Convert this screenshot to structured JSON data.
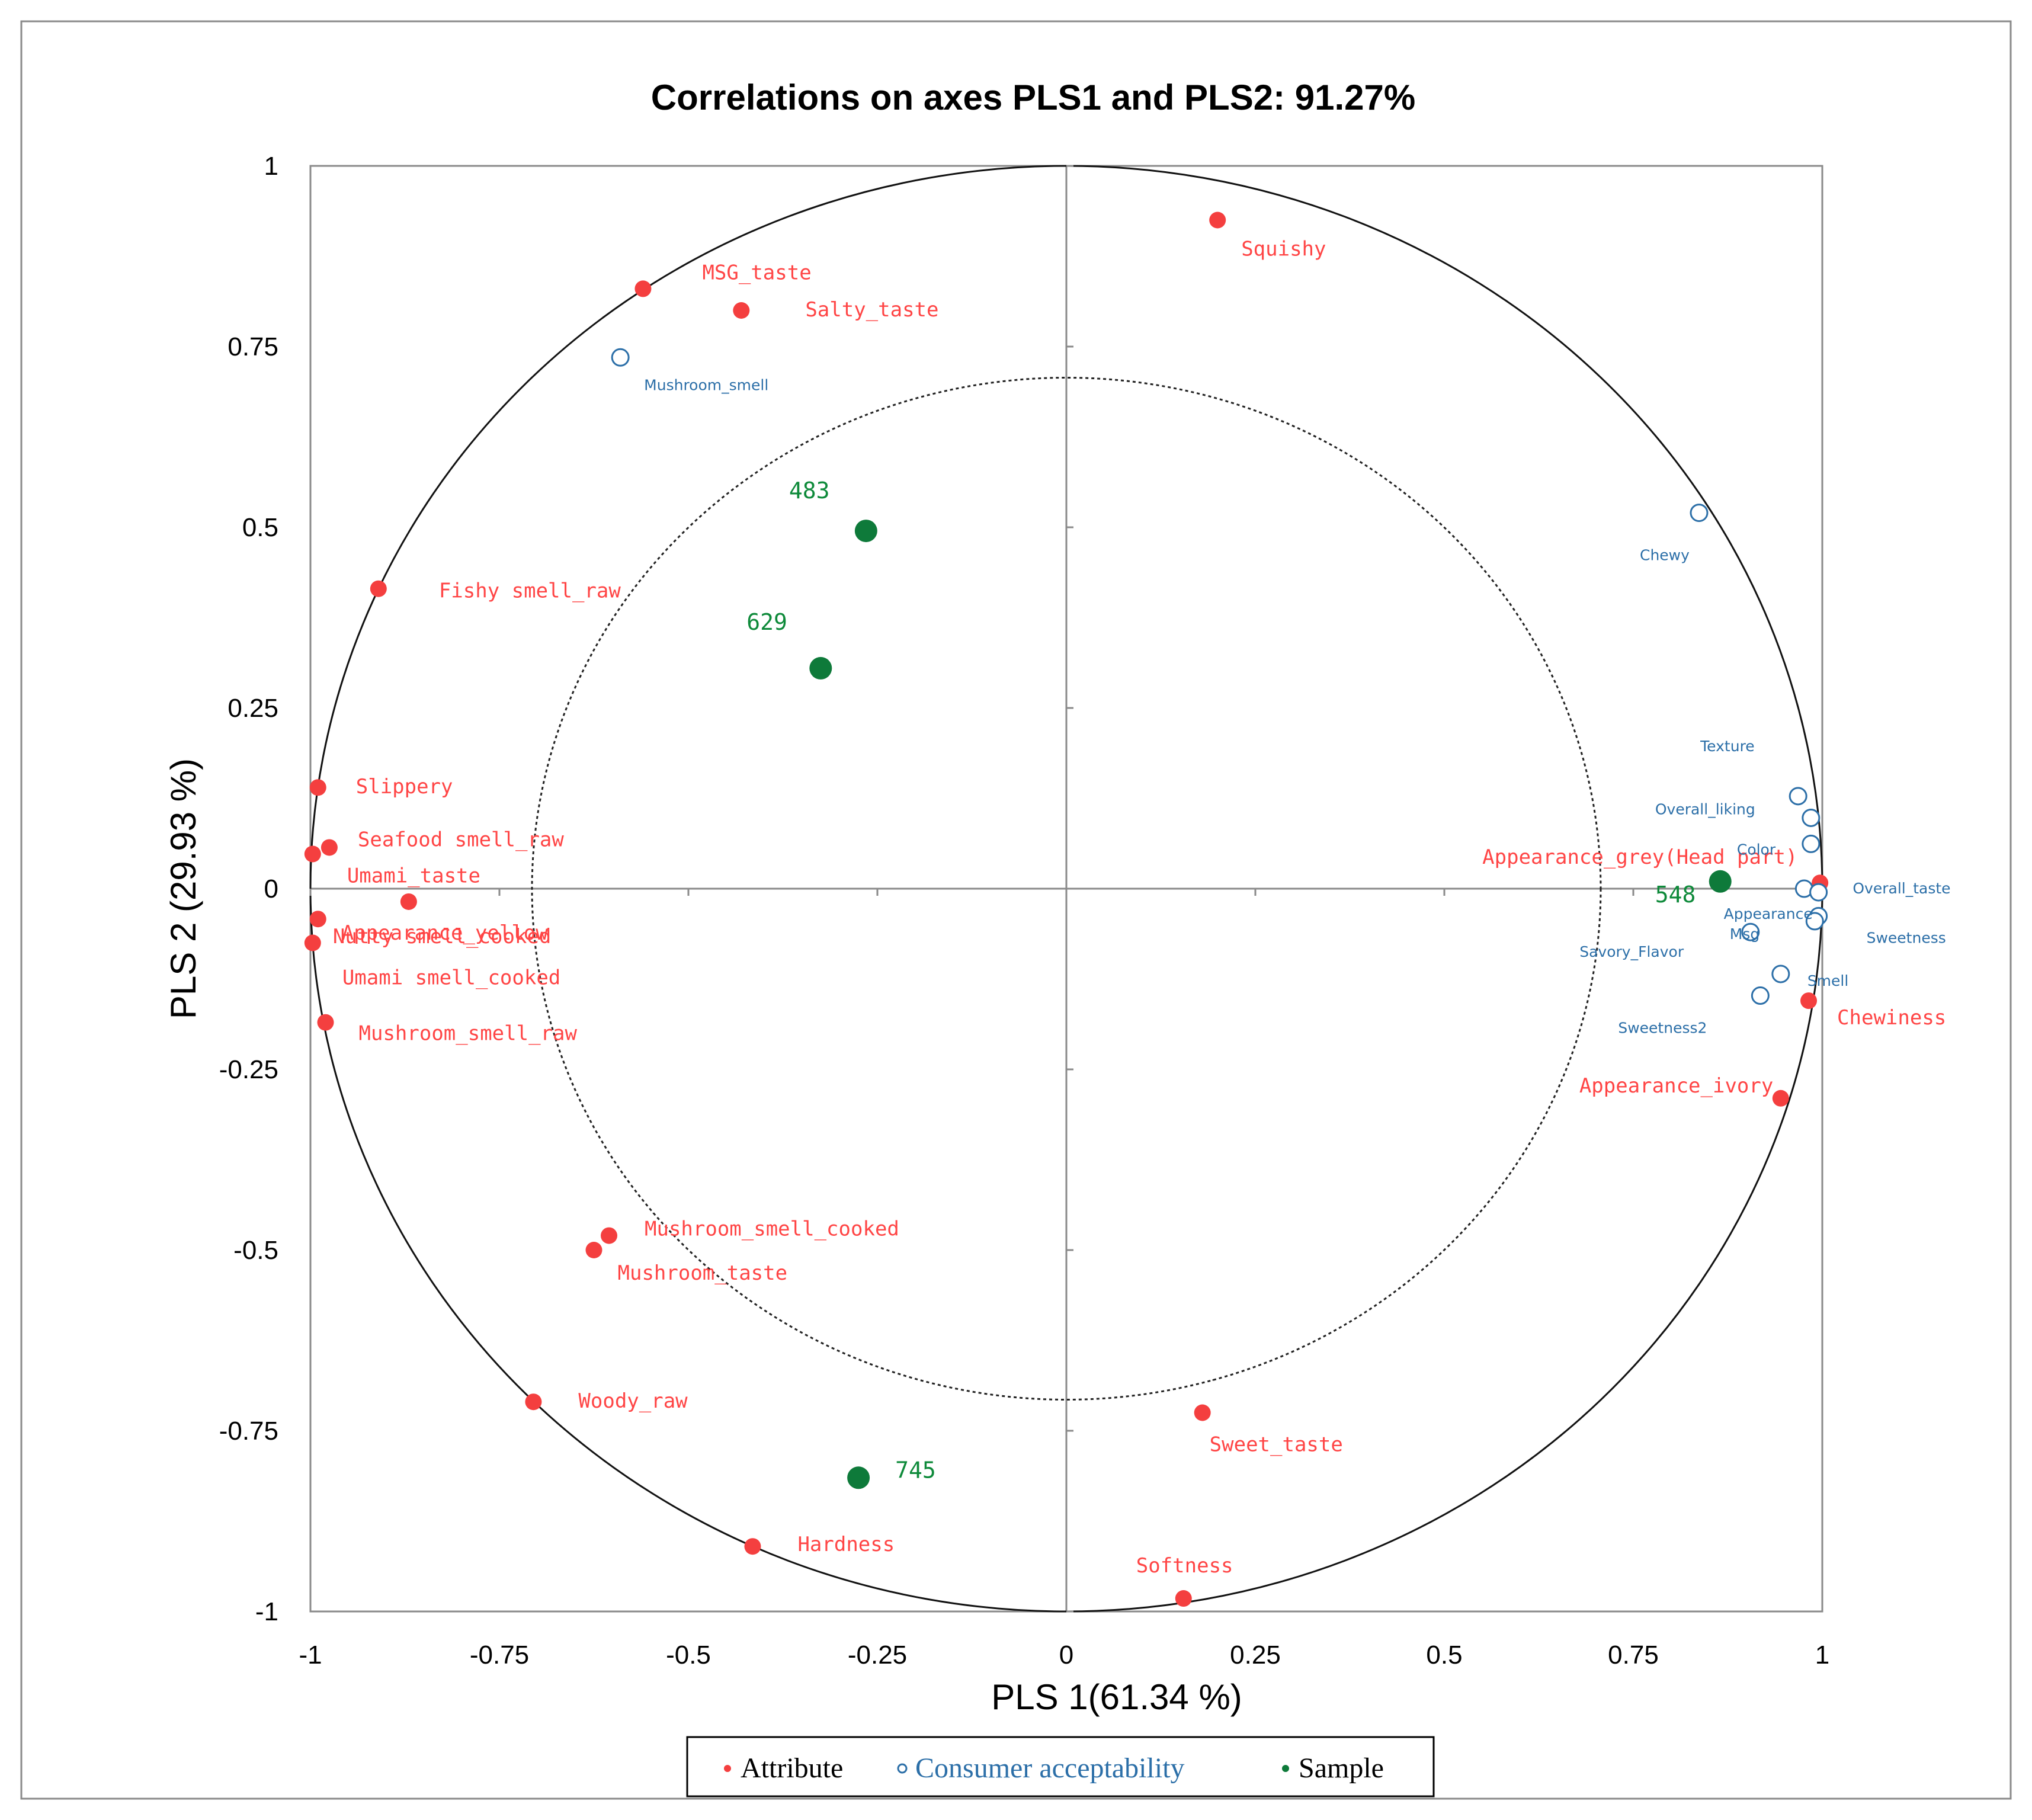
{
  "colors": {
    "attribute": "#f43f3f",
    "consumer": "#2c6fa8",
    "sample": "#0e7a3a",
    "attribute_text": "#ff4545",
    "consumer_text": "#2c6fa8",
    "sample_text": "#0e8a3a"
  },
  "chart_data": {
    "type": "scatter",
    "title": "Correlations on axes PLS1 and PLS2: 91.27%",
    "xlabel": "PLS 1(61.34 %)",
    "ylabel": "PLS 2 (29.93 %)",
    "xlim": [
      -1,
      1
    ],
    "ylim": [
      -1,
      1
    ],
    "x_ticks": [
      "-1",
      "-0.75",
      "-0.5",
      "-0.25",
      "0",
      "0.25",
      "0.5",
      "0.75",
      "1"
    ],
    "y_ticks": [
      "1",
      "0.75",
      "0.5",
      "0.25",
      "0",
      "-0.25",
      "-0.5",
      "-0.75",
      "-1"
    ],
    "circles": [
      {
        "name": "outer",
        "radius": 1,
        "style": "solid"
      },
      {
        "name": "inner",
        "radius": 0.707,
        "style": "dotted"
      }
    ],
    "legend": {
      "position": "bottom-center",
      "entries": [
        {
          "label": "Attribute",
          "marker": "filled",
          "series": "attribute"
        },
        {
          "label": "Consumer acceptability",
          "marker": "hollow",
          "series": "consumer"
        },
        {
          "label": "Sample",
          "marker": "filled",
          "series": "sample"
        }
      ]
    },
    "series": [
      {
        "name": "Attribute",
        "points": [
          {
            "label": "Squishy",
            "x": 0.2,
            "y": 0.925
          },
          {
            "label": "MSG_taste",
            "x": -0.56,
            "y": 0.83
          },
          {
            "label": "Salty_taste",
            "x": -0.43,
            "y": 0.8
          },
          {
            "label": "Fishy smell_raw",
            "x": -0.91,
            "y": 0.415
          },
          {
            "label": "Slippery",
            "x": -0.99,
            "y": 0.14
          },
          {
            "label": "Seafood smell_raw",
            "x": -0.975,
            "y": 0.057
          },
          {
            "label": "Umami_taste",
            "x": -0.997,
            "y": 0.048
          },
          {
            "label": "Nutty smell_cooked",
            "x": -0.87,
            "y": -0.018
          },
          {
            "label": "Appearance_yellow",
            "x": -0.99,
            "y": -0.042
          },
          {
            "label": "Umami smell_cooked",
            "x": -0.997,
            "y": -0.075
          },
          {
            "label": "Mushroom_smell_raw",
            "x": -0.98,
            "y": -0.185
          },
          {
            "label": "Mushroom_smell_cooked",
            "x": -0.605,
            "y": -0.48
          },
          {
            "label": "Mushroom_taste",
            "x": -0.625,
            "y": -0.5
          },
          {
            "label": "Woody_raw",
            "x": -0.705,
            "y": -0.71
          },
          {
            "label": "Hardness",
            "x": -0.415,
            "y": -0.91
          },
          {
            "label": "Sweet_taste",
            "x": 0.18,
            "y": -0.725
          },
          {
            "label": "Softness",
            "x": 0.155,
            "y": -0.982
          },
          {
            "label": "Appearance_grey(Head part)",
            "x": 0.997,
            "y": 0.008
          },
          {
            "label": "Chewiness",
            "x": 0.982,
            "y": -0.155
          },
          {
            "label": "Appearance_ivory",
            "x": 0.945,
            "y": -0.29
          }
        ]
      },
      {
        "name": "Consumer acceptability",
        "points": [
          {
            "label": "Mushroom_smell",
            "x": -0.59,
            "y": 0.735
          },
          {
            "label": "Chewy",
            "x": 0.837,
            "y": 0.52
          },
          {
            "label": "Texture",
            "x": 0.968,
            "y": 0.128
          },
          {
            "label": "Overall_liking",
            "x": 0.985,
            "y": 0.098
          },
          {
            "label": "Color",
            "x": 0.985,
            "y": 0.062
          },
          {
            "label": "Overall_taste",
            "x": 0.976,
            "y": 0.0
          },
          {
            "label": "Appearance",
            "x": 0.995,
            "y": -0.005
          },
          {
            "label": "Sweetness",
            "x": 0.995,
            "y": -0.038
          },
          {
            "label": "Savory_Flavor",
            "x": 0.99,
            "y": -0.045
          },
          {
            "label": "Msg",
            "x": 0.905,
            "y": -0.06
          },
          {
            "label": "Smell",
            "x": 0.945,
            "y": -0.118
          },
          {
            "label": "Sweetness2",
            "x": 0.918,
            "y": -0.148
          }
        ]
      },
      {
        "name": "Sample",
        "points": [
          {
            "label": "483",
            "x": -0.265,
            "y": 0.495
          },
          {
            "label": "629",
            "x": -0.325,
            "y": 0.305
          },
          {
            "label": "548",
            "x": 0.865,
            "y": 0.01
          },
          {
            "label": "745",
            "x": -0.275,
            "y": -0.815
          }
        ]
      }
    ]
  }
}
